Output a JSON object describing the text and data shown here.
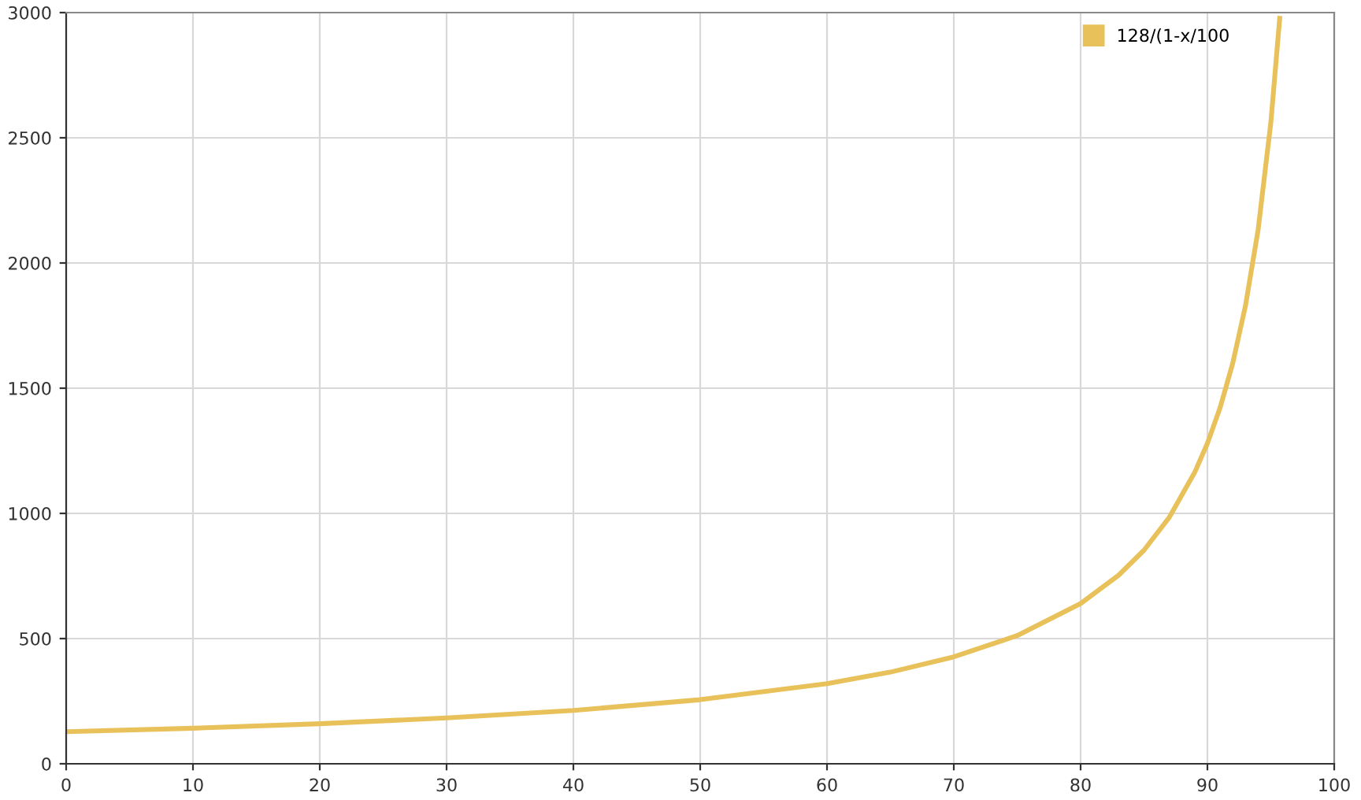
{
  "chart_data": {
    "type": "line",
    "x": [
      0,
      10,
      20,
      30,
      40,
      50,
      60,
      65,
      70,
      75,
      80,
      83,
      85,
      87,
      89,
      90,
      91,
      92,
      93,
      94,
      95,
      95.7
    ],
    "series": [
      {
        "name": "128/(1-x/100",
        "color": "#e8c15a",
        "values": [
          128,
          142,
          160,
          183,
          213,
          256,
          320,
          366,
          427,
          512,
          640,
          753,
          853,
          985,
          1164,
          1280,
          1422,
          1600,
          1829,
          2133,
          2560,
          2977
        ]
      }
    ],
    "xlim": [
      0,
      100
    ],
    "xticks": [
      0,
      10,
      20,
      30,
      40,
      50,
      60,
      70,
      80,
      90,
      100
    ],
    "ylim": [
      0,
      3000
    ],
    "yticks": [
      0,
      500,
      1000,
      1500,
      2000,
      2500,
      3000
    ],
    "grid": true,
    "legend": "top right",
    "marker": "none",
    "line_style": "solid"
  }
}
